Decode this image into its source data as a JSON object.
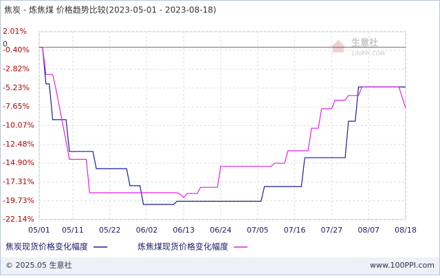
{
  "chart_data": {
    "type": "line",
    "title": "焦炭 - 炼焦煤 价格趋势比较(2023-05-01 - 2023-08-18)",
    "xlim": [
      "05/01",
      "08/18"
    ],
    "xticks": [
      "05/01",
      "05/11",
      "05/22",
      "06/02",
      "06/13",
      "06/24",
      "07/05",
      "07/16",
      "07/27",
      "08/07",
      "08/18"
    ],
    "ylim": [
      -22.14,
      2.01
    ],
    "yticks": [
      {
        "value": 2.01,
        "label": "2.01%"
      },
      {
        "value": -0.4,
        "label": "-0.40%"
      },
      {
        "value": -2.82,
        "label": "-2.82%"
      },
      {
        "value": -5.23,
        "label": "-5.23%"
      },
      {
        "value": -7.65,
        "label": "-7.65%"
      },
      {
        "value": -10.07,
        "label": "-10.07%"
      },
      {
        "value": -12.48,
        "label": "-12.48%"
      },
      {
        "value": -14.9,
        "label": "-14.90%"
      },
      {
        "value": -17.31,
        "label": "-17.31%"
      },
      {
        "value": -19.73,
        "label": "-19.73%"
      },
      {
        "value": -22.14,
        "label": "-22.14%"
      }
    ],
    "zero_label": 0,
    "grid": true,
    "series": [
      {
        "name": "焦炭现货价格变化幅度",
        "color": "#1a1a9a",
        "x": [
          "05/01",
          "05/02",
          "05/03",
          "05/04",
          "05/05",
          "05/09",
          "05/10",
          "05/17",
          "05/18",
          "05/27",
          "05/28",
          "05/31",
          "06/01",
          "06/10",
          "06/11",
          "07/06",
          "07/07",
          "07/18",
          "07/19",
          "07/31",
          "08/01",
          "08/03",
          "08/04",
          "08/18"
        ],
        "values": [
          0,
          0,
          -4.7,
          -4.7,
          -9.3,
          -9.3,
          -13.4,
          -13.4,
          -15.6,
          -15.6,
          -17.8,
          -17.8,
          -20.2,
          -20.2,
          -19.8,
          -19.8,
          -17.9,
          -17.9,
          -14.2,
          -14.2,
          -9.5,
          -9.5,
          -5.1,
          -5.1
        ]
      },
      {
        "name": "炼焦煤现货价格变化幅度",
        "color": "#e020e0",
        "x": [
          "05/01",
          "05/02",
          "05/03",
          "05/05",
          "05/06",
          "05/09",
          "05/10",
          "05/15",
          "05/16",
          "06/11",
          "06/12",
          "06/13",
          "06/14",
          "06/17",
          "06/18",
          "06/23",
          "06/24",
          "07/09",
          "07/10",
          "07/13",
          "07/14",
          "07/20",
          "07/21",
          "07/23",
          "07/24",
          "07/27",
          "07/28",
          "07/31",
          "08/01",
          "08/04",
          "08/05",
          "08/16",
          "08/18"
        ],
        "values": [
          0,
          0,
          -3.5,
          -3.5,
          -5.4,
          -12.1,
          -14.4,
          -14.4,
          -18.7,
          -18.7,
          -18.9,
          -19.3,
          -18.8,
          -18.8,
          -18.0,
          -18.0,
          -15.3,
          -15.3,
          -14.9,
          -14.9,
          -13.3,
          -13.3,
          -10.4,
          -10.4,
          -7.9,
          -7.9,
          -6.8,
          -6.8,
          -6.2,
          -6.2,
          -5.1,
          -5.1,
          -7.8
        ]
      }
    ],
    "watermark": {
      "name": "生意社",
      "site": "100PPI.COM"
    },
    "footer": {
      "left": "© 2025.05 生意社",
      "right": "www.100PPI.com"
    }
  }
}
